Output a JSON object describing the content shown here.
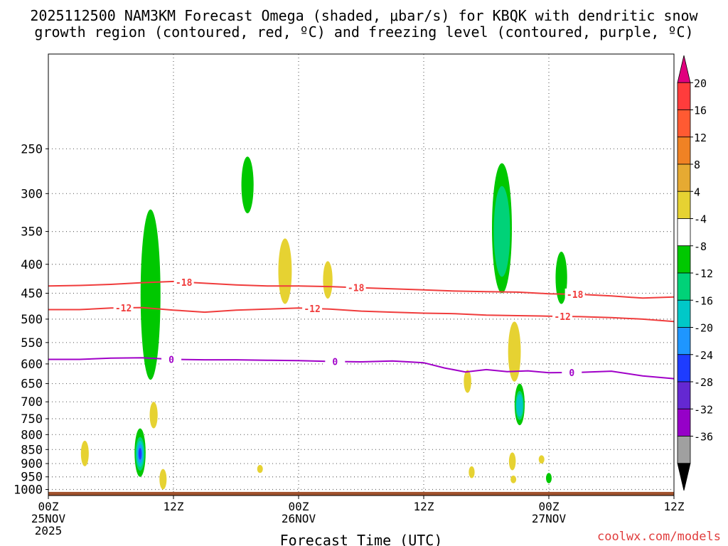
{
  "chart_data": {
    "type": "contour",
    "title_line1": "2025112500 NAM3KM Forecast Omega (shaded, μbar/s) for KBQK with dendritic snow",
    "title_line2": "growth region (contoured, red, ºC) and freezing level (contoured, purple, ºC)",
    "xlabel": "Forecast Time (UTC)",
    "ylabel": "",
    "credit": "coolwx.com/models",
    "x_range_hours": [
      0,
      60
    ],
    "y_range_hpa": [
      1025,
      170
    ],
    "y_ticks": [
      250,
      300,
      350,
      400,
      450,
      500,
      550,
      600,
      650,
      700,
      750,
      800,
      850,
      900,
      950,
      1000
    ],
    "x_ticks": [
      {
        "hour": 0,
        "label": "00Z",
        "date": "25NOV",
        "year": "2025"
      },
      {
        "hour": 12,
        "label": "12Z",
        "date": "",
        "year": ""
      },
      {
        "hour": 24,
        "label": "00Z",
        "date": "26NOV",
        "year": ""
      },
      {
        "hour": 36,
        "label": "12Z",
        "date": "",
        "year": ""
      },
      {
        "hour": 48,
        "label": "00Z",
        "date": "27NOV",
        "year": ""
      },
      {
        "hour": 60,
        "label": "12Z",
        "date": "",
        "year": ""
      }
    ],
    "colorbar": {
      "labels": [
        "20",
        "16",
        "12",
        "8",
        "4",
        "-4",
        "-8",
        "-12",
        "-16",
        "-20",
        "-24",
        "-28",
        "-32",
        "-36"
      ],
      "colors": [
        "#e0007e",
        "#ff3c3c",
        "#ff5a32",
        "#f08224",
        "#e6aa32",
        "#e6d232",
        "#ffffff",
        "#00c800",
        "#00d278",
        "#00c8c8",
        "#1e96ff",
        "#1e3cff",
        "#6428d2",
        "#9600c8",
        "#a0a0a0",
        "#000000"
      ]
    },
    "contours": [
      {
        "name": "-18",
        "label": "-18",
        "color": "#f03c3c",
        "points": [
          [
            0,
            437
          ],
          [
            3,
            436
          ],
          [
            6,
            434
          ],
          [
            9,
            431
          ],
          [
            12,
            429
          ],
          [
            15,
            432
          ],
          [
            18,
            435
          ],
          [
            21,
            437
          ],
          [
            24,
            437
          ],
          [
            27,
            438
          ],
          [
            30,
            440
          ],
          [
            33,
            442
          ],
          [
            36,
            444
          ],
          [
            39,
            446
          ],
          [
            42,
            447
          ],
          [
            45,
            448
          ],
          [
            48,
            451
          ],
          [
            51,
            452
          ],
          [
            54,
            455
          ],
          [
            57,
            459
          ],
          [
            60,
            457
          ]
        ],
        "label_hours": [
          13,
          29.5,
          50.5
        ]
      },
      {
        "name": "-12",
        "label": "-12",
        "color": "#f03c3c",
        "points": [
          [
            0,
            481
          ],
          [
            3,
            481
          ],
          [
            6,
            478
          ],
          [
            9,
            477
          ],
          [
            12,
            482
          ],
          [
            15,
            486
          ],
          [
            18,
            482
          ],
          [
            21,
            480
          ],
          [
            24,
            478
          ],
          [
            27,
            480
          ],
          [
            30,
            484
          ],
          [
            33,
            486
          ],
          [
            36,
            488
          ],
          [
            39,
            489
          ],
          [
            42,
            492
          ],
          [
            45,
            493
          ],
          [
            48,
            494
          ],
          [
            51,
            495
          ],
          [
            54,
            497
          ],
          [
            57,
            500
          ],
          [
            60,
            505
          ]
        ],
        "label_hours": [
          7.2,
          25.3,
          49.3
        ]
      },
      {
        "name": "0",
        "label": "0",
        "color": "#a000c8",
        "points": [
          [
            0,
            589
          ],
          [
            3,
            589
          ],
          [
            6,
            586
          ],
          [
            9,
            585
          ],
          [
            12,
            589
          ],
          [
            15,
            590
          ],
          [
            18,
            590
          ],
          [
            21,
            591
          ],
          [
            24,
            592
          ],
          [
            27,
            594
          ],
          [
            30,
            595
          ],
          [
            33,
            593
          ],
          [
            36,
            597
          ],
          [
            38,
            610
          ],
          [
            40,
            620
          ],
          [
            42,
            614
          ],
          [
            44,
            619
          ],
          [
            46,
            617
          ],
          [
            48,
            622
          ],
          [
            51,
            621
          ],
          [
            54,
            618
          ],
          [
            57,
            630
          ],
          [
            60,
            637
          ]
        ],
        "label_hours": [
          11.8,
          27.5,
          50.2
        ]
      }
    ],
    "shaded_features": [
      {
        "name": "green-400hpa-col-10h",
        "value": -6,
        "hour": 9.8,
        "p_top": 320,
        "p_bot": 640
      },
      {
        "name": "green-290hpa-col-19h",
        "value": -6,
        "hour": 19.1,
        "p_top": 258,
        "p_bot": 325
      },
      {
        "name": "yellow-410hpa-24h",
        "value": 5,
        "hour": 22.7,
        "p_top": 360,
        "p_bot": 470
      },
      {
        "name": "yellow-425hpa-27h",
        "value": 5,
        "hour": 26.8,
        "p_top": 395,
        "p_bot": 460
      },
      {
        "name": "green-350hpa-col-43h",
        "value": -8,
        "hour": 43.5,
        "p_top": 265,
        "p_bot": 450
      },
      {
        "name": "green-420hpa-49h",
        "value": -6,
        "hour": 49.2,
        "p_top": 380,
        "p_bot": 470
      },
      {
        "name": "yellow-600hpa-44h",
        "value": 5,
        "hour": 44.7,
        "p_top": 505,
        "p_bot": 645
      },
      {
        "name": "yellow-650hpa-40h",
        "value": 5,
        "hour": 40.2,
        "p_top": 615,
        "p_bot": 675
      },
      {
        "name": "green-720hpa-45h",
        "value": -14,
        "hour": 45.2,
        "p_top": 650,
        "p_bot": 770
      },
      {
        "name": "yellow-740hpa-10h",
        "value": 6,
        "hour": 10.1,
        "p_top": 700,
        "p_bot": 780
      },
      {
        "name": "blue-850hpa-9h",
        "value": -20,
        "hour": 8.8,
        "p_top": 780,
        "p_bot": 950
      },
      {
        "name": "yellow-870hpa-3h",
        "value": 5,
        "hour": 3.5,
        "p_top": 820,
        "p_bot": 910
      },
      {
        "name": "yellow-960hpa-11h",
        "value": 5,
        "hour": 11,
        "p_top": 920,
        "p_bot": 1000
      },
      {
        "name": "yellow-920hpa-20h",
        "value": 5,
        "hour": 20.3,
        "p_top": 905,
        "p_bot": 935
      },
      {
        "name": "yellow-930hpa-40h",
        "value": 5,
        "hour": 40.6,
        "p_top": 910,
        "p_bot": 955
      },
      {
        "name": "yellow-890hpa-44h",
        "value": 5,
        "hour": 44.5,
        "p_top": 860,
        "p_bot": 925
      },
      {
        "name": "yellow-960hpa-44h",
        "value": 5,
        "hour": 44.6,
        "p_top": 945,
        "p_bot": 975
      },
      {
        "name": "yellow-880hpa-47h",
        "value": 5,
        "hour": 47.3,
        "p_top": 870,
        "p_bot": 900
      },
      {
        "name": "green-950hpa-48h",
        "value": -5,
        "hour": 48,
        "p_top": 935,
        "p_bot": 975
      }
    ],
    "terrain": {
      "color": "#a0522d",
      "p_surface": 1010
    }
  }
}
